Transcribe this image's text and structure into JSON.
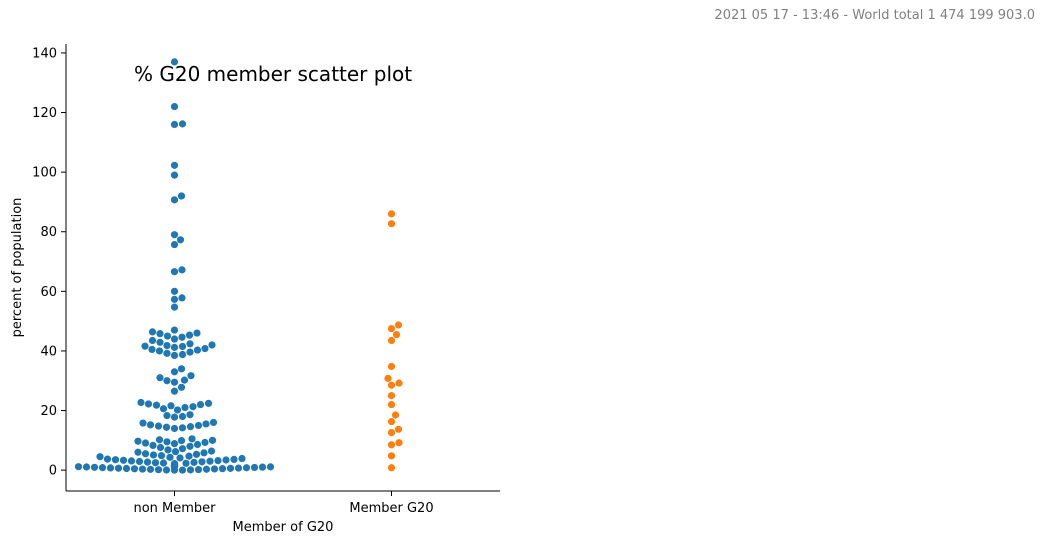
{
  "header": {
    "stamp": "2021 05 17 - 13:46 - World total 1 474 199 903.0"
  },
  "chart_data": {
    "type": "scatter",
    "subtype": "swarm",
    "title": "% G20 member scatter plot",
    "xlabel": "Member of G20",
    "ylabel": "percent of population",
    "categories": [
      "non Member",
      "Member G20"
    ],
    "ylim": [
      -7,
      143
    ],
    "yticks": [
      0,
      20,
      40,
      60,
      80,
      100,
      120,
      140
    ],
    "grid": false,
    "colors": [
      "#1f77b4",
      "#ff7f0e"
    ],
    "series": [
      {
        "category": "non Member",
        "values": [
          137,
          122,
          116.2,
          116,
          102.3,
          99,
          92,
          90.7,
          79,
          77.3,
          75.7,
          67.2,
          66.6,
          60,
          57.8,
          57.3,
          54.7,
          47,
          46.4,
          46,
          45.8,
          45.3,
          45,
          44.6,
          44,
          43.5,
          42.9,
          42.4,
          42,
          41.8,
          41.6,
          41.5,
          41.2,
          40.8,
          40.5,
          40.3,
          40,
          39.6,
          39.2,
          38.8,
          38.5,
          34,
          33,
          31.7,
          31,
          30.2,
          30,
          29.5,
          27.8,
          26.5,
          22.7,
          22.4,
          22.2,
          22,
          21.8,
          21.6,
          21.3,
          21,
          20.6,
          20.2,
          18.6,
          18.3,
          18,
          17.8,
          16,
          15.8,
          15.5,
          15.2,
          15,
          14.8,
          14.6,
          14.4,
          14.2,
          14,
          10.5,
          10.2,
          10,
          9.9,
          9.7,
          9.5,
          9.3,
          9.1,
          8.9,
          8.6,
          8.3,
          8,
          7.6,
          7.2,
          6.8,
          6.4,
          6.2,
          6,
          5.8,
          5.5,
          5.3,
          5.1,
          4.9,
          4.7,
          4.5,
          4.3,
          4.1,
          3.9,
          3.7,
          3.6,
          3.5,
          3.4,
          3.3,
          3.2,
          3.1,
          3,
          2.9,
          2.8,
          2.7,
          2.6,
          2.5,
          2.4,
          2.3,
          2.2,
          2.1,
          2,
          1.9,
          1.8,
          1.7,
          1.6,
          1.5,
          1.45,
          1.4,
          1.35,
          1.3,
          1.25,
          1.2,
          1.15,
          1.1,
          1.05,
          1,
          0.95,
          0.9,
          0.85,
          0.8,
          0.75,
          0.7,
          0.65,
          0.6,
          0.55,
          0.5,
          0.45,
          0.4,
          0.35,
          0.3,
          0.25,
          0.2,
          0.15,
          0.1,
          0.05,
          0.02,
          0.01
        ]
      },
      {
        "category": "Member G20",
        "values": [
          86,
          82.7,
          48.7,
          47.5,
          45.5,
          43.5,
          34.8,
          30.8,
          29.2,
          28.5,
          25,
          22,
          18.5,
          16.3,
          13.7,
          12.6,
          9.2,
          8.5,
          4.8,
          0.8
        ]
      }
    ]
  }
}
